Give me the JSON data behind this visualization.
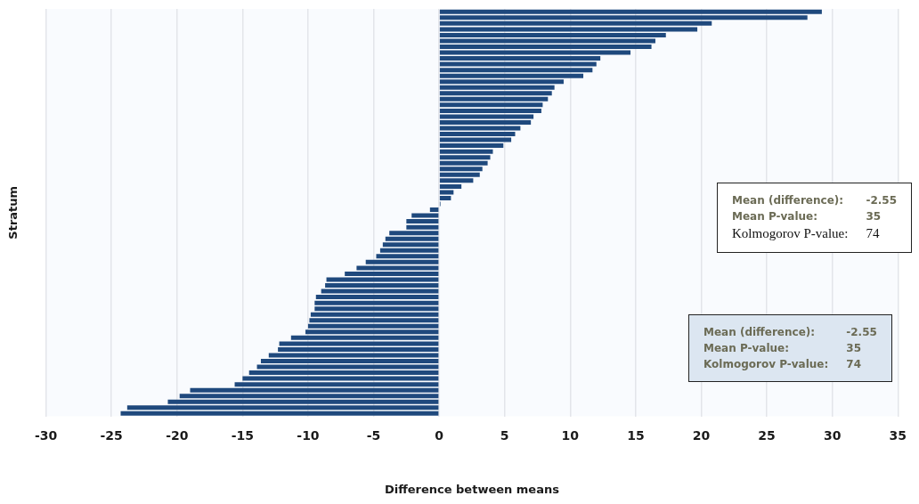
{
  "chart_data": {
    "type": "bar",
    "orientation": "horizontal",
    "xlabel": "Difference between means",
    "ylabel": "Stratum",
    "categories": [
      null,
      null,
      null,
      null,
      null,
      null,
      null,
      null,
      null,
      null,
      null,
      null,
      null,
      null,
      null,
      null,
      null,
      null,
      null,
      null,
      null,
      null,
      null,
      null,
      null,
      null,
      null,
      null,
      null,
      null,
      null,
      null,
      null,
      null,
      null,
      null,
      null,
      null,
      null,
      null,
      null,
      null,
      null,
      null,
      null,
      null,
      null,
      null,
      null,
      null,
      null,
      null,
      null,
      null,
      null,
      null,
      null,
      null,
      null,
      null,
      null,
      null,
      null,
      null,
      null,
      null,
      null,
      null,
      null,
      null
    ],
    "values": [
      29.2,
      28.1,
      20.8,
      19.7,
      17.3,
      16.5,
      16.2,
      14.6,
      12.3,
      12.0,
      11.7,
      11.0,
      9.5,
      8.8,
      8.6,
      8.3,
      7.9,
      7.8,
      7.2,
      7.0,
      6.2,
      5.8,
      5.5,
      4.9,
      4.1,
      3.9,
      3.7,
      3.3,
      3.1,
      2.6,
      1.7,
      1.1,
      0.9,
      0.1,
      -0.7,
      -2.1,
      -2.5,
      -2.5,
      -3.8,
      -4.1,
      -4.3,
      -4.5,
      -4.8,
      -5.6,
      -6.3,
      -7.2,
      -8.6,
      -8.7,
      -9.0,
      -9.4,
      -9.5,
      -9.5,
      -9.8,
      -9.9,
      -10.0,
      -10.2,
      -11.3,
      -12.2,
      -12.3,
      -13.0,
      -13.6,
      -13.9,
      -14.5,
      -15.0,
      -15.6,
      -19.0,
      -19.8,
      -20.7,
      -23.8,
      -24.3
    ],
    "color": "#1f497d",
    "xlim": [
      -30,
      35
    ],
    "xticks": [
      -30,
      -25,
      -20,
      -15,
      -10,
      -5,
      0,
      5,
      10,
      15,
      20,
      25,
      30,
      35
    ],
    "grid": "x",
    "tick_labels": "x",
    "annotations": [
      "Mean (difference):",
      "-2.55",
      "Mean P-value:",
      "35",
      "Kolmogorov P-value:",
      "74",
      "Mean (difference):",
      "-2.55",
      "Mean P-value:",
      "35",
      "Kolmogorov P-value:",
      "74"
    ]
  }
}
